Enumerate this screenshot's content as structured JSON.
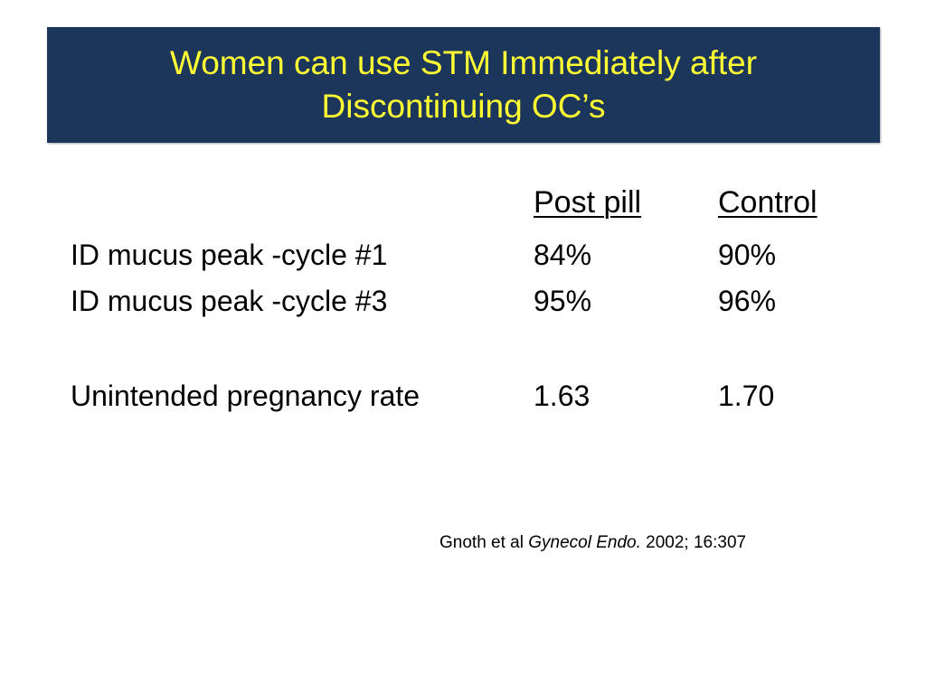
{
  "title": {
    "line1": "Women can use STM Immediately after",
    "line2": "Discontinuing OC’s"
  },
  "table": {
    "headers": [
      "Post pill",
      "Control"
    ],
    "rows": [
      {
        "label": "ID mucus peak -cycle #1",
        "post_pill": "84%",
        "control": "90%"
      },
      {
        "label": "ID mucus peak -cycle #3",
        "post_pill": "95%",
        "control": "96%"
      },
      {
        "label": "Unintended pregnancy rate",
        "post_pill": "1.63",
        "control": "1.70"
      }
    ]
  },
  "citation": {
    "authors": "Gnoth et al ",
    "journal": "Gynecol Endo.",
    "details": " 2002; 16:307"
  },
  "colors": {
    "title_background": "#1b355b",
    "title_text": "#ffff33",
    "body_text": "#000000"
  }
}
